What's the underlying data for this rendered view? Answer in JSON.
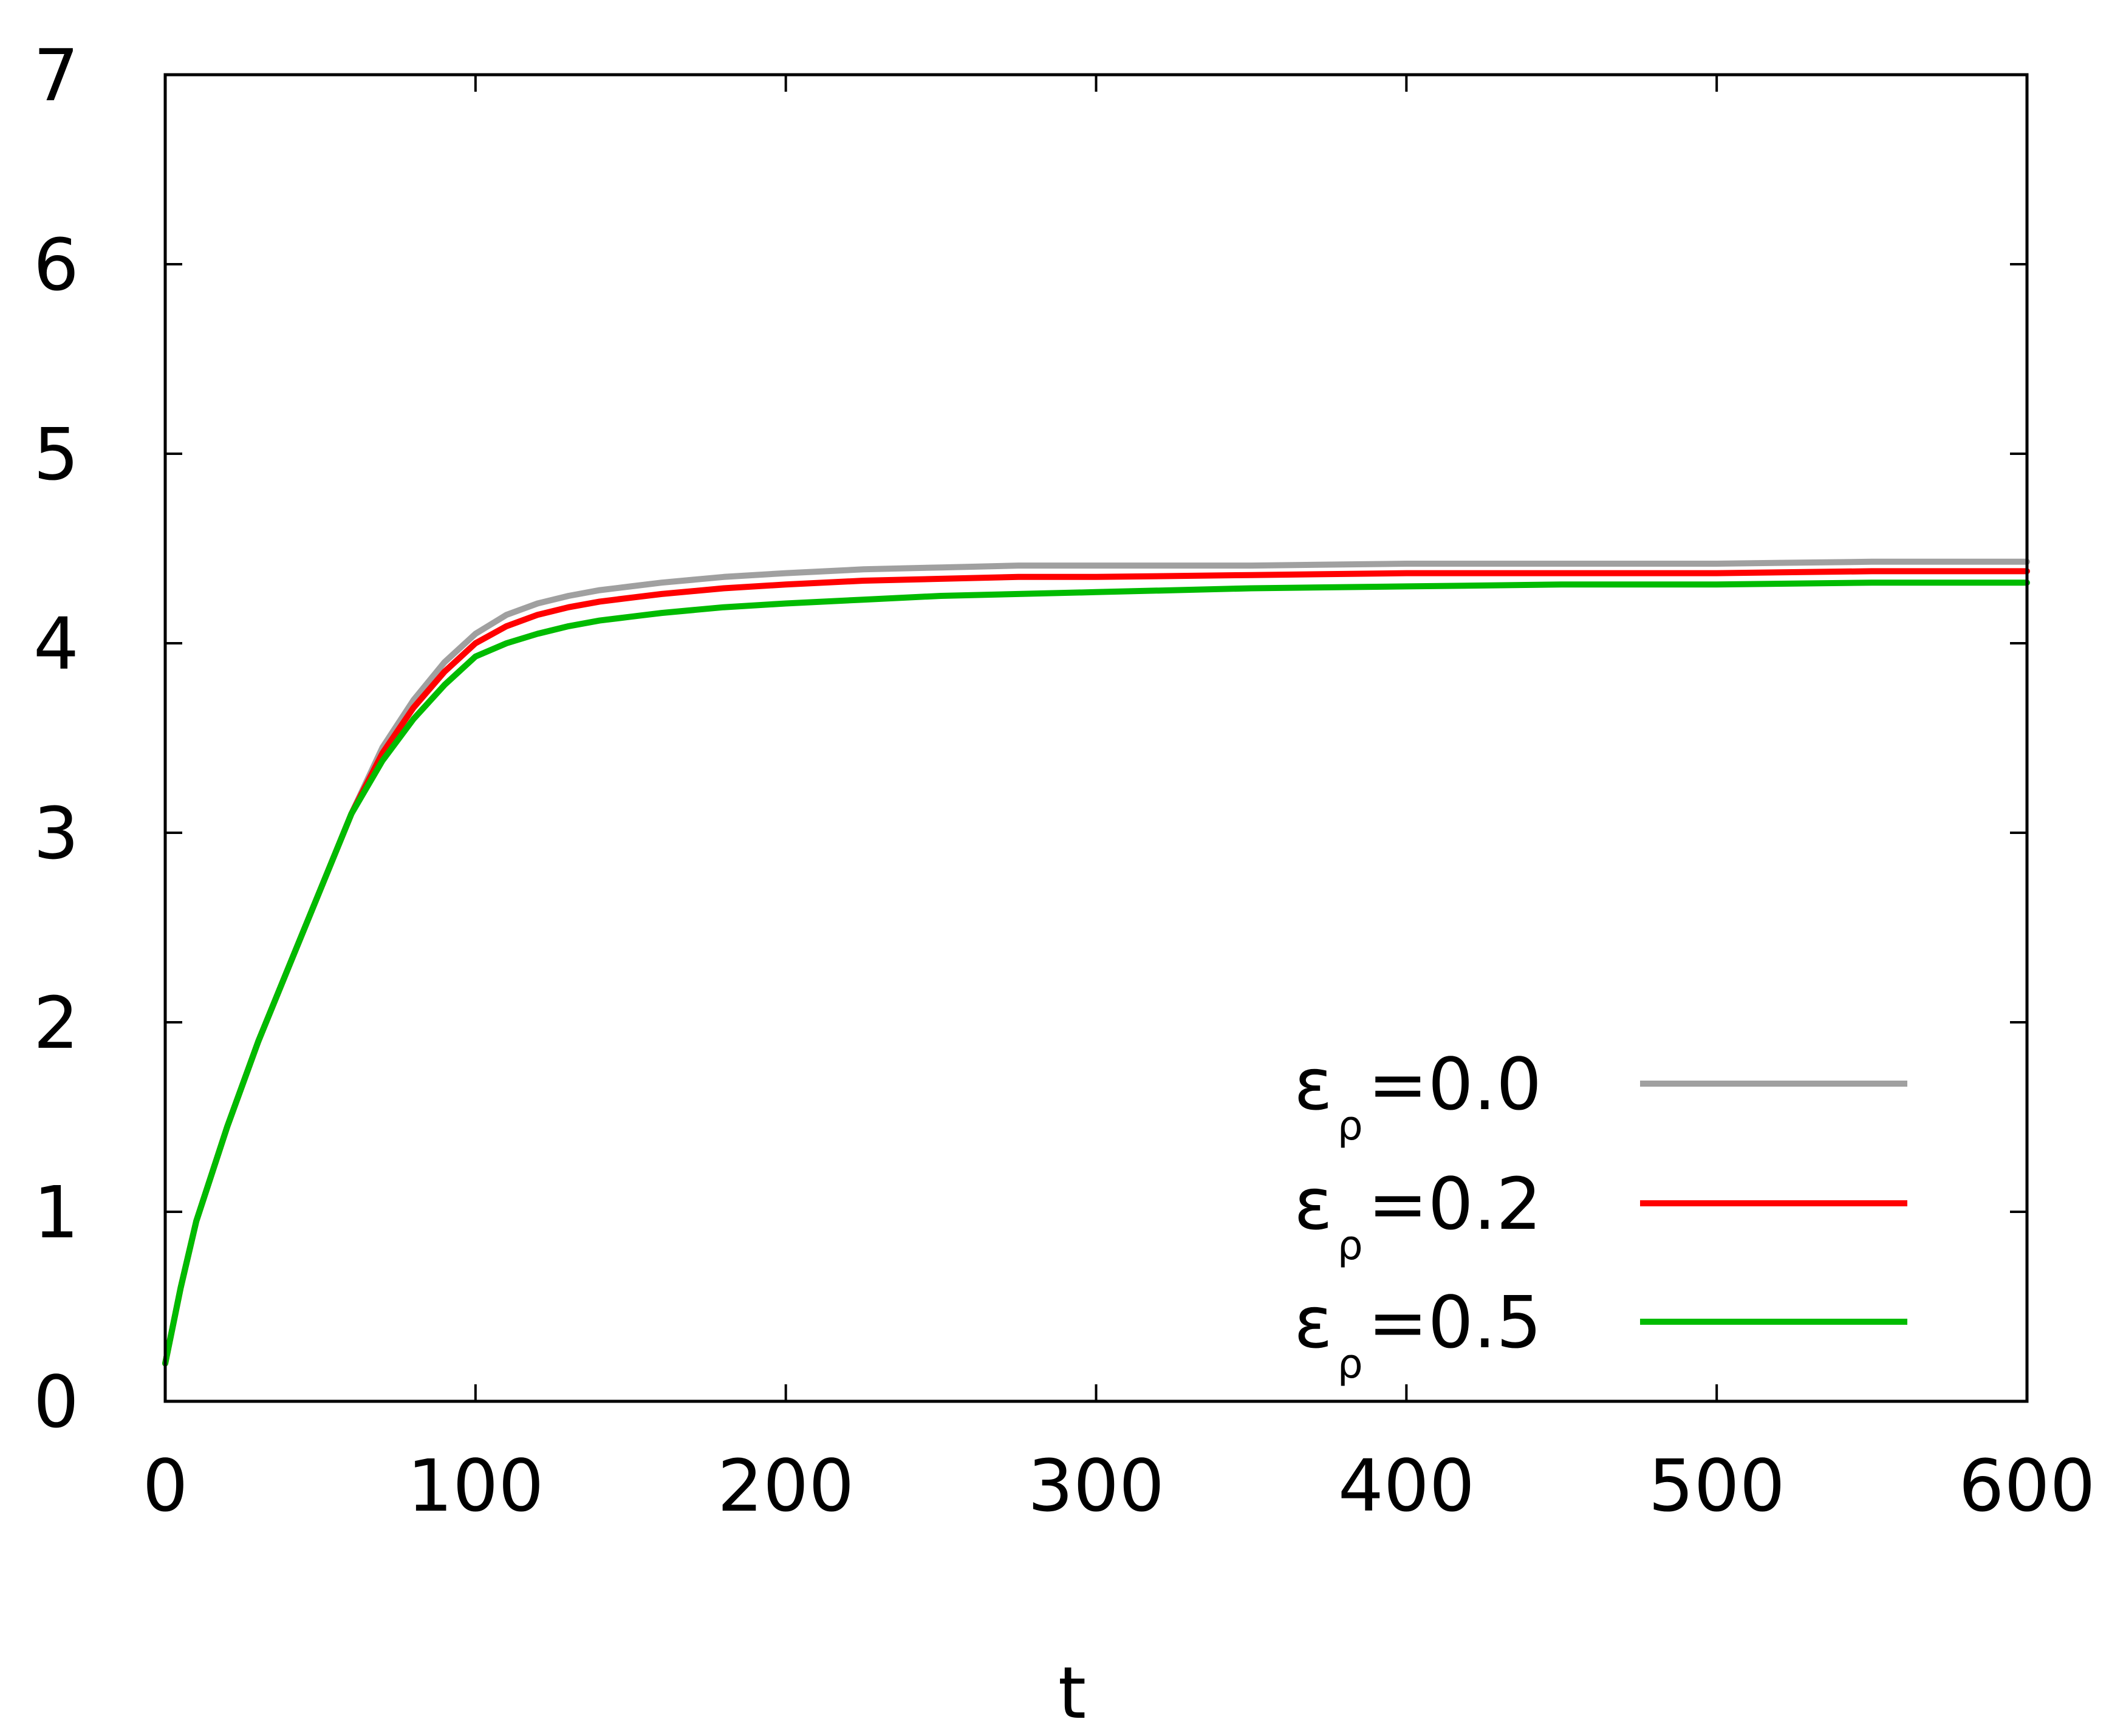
{
  "chart_data": {
    "type": "line",
    "title": "",
    "xlabel": "t",
    "ylabel": "",
    "xlim": [
      0,
      600
    ],
    "ylim": [
      0,
      7
    ],
    "xticks": [
      "0",
      "100",
      "200",
      "300",
      "400",
      "500",
      "600"
    ],
    "yticks": [
      "0",
      "1",
      "2",
      "3",
      "4",
      "5",
      "6",
      "7"
    ],
    "grid": false,
    "legend_position": "bottom-right",
    "series": [
      {
        "name": "ε_ρ=0.0",
        "legend_main": "ε",
        "legend_sub": "ρ",
        "legend_value": "=0.0",
        "color": "#a0a0a0",
        "x": [
          0,
          5,
          10,
          20,
          30,
          40,
          50,
          60,
          70,
          80,
          90,
          100,
          110,
          120,
          130,
          140,
          150,
          160,
          180,
          200,
          225,
          250,
          275,
          300,
          350,
          400,
          450,
          500,
          550,
          600
        ],
        "y": [
          0.2,
          0.6,
          0.95,
          1.45,
          1.9,
          2.3,
          2.7,
          3.1,
          3.45,
          3.7,
          3.9,
          4.05,
          4.15,
          4.21,
          4.25,
          4.28,
          4.3,
          4.32,
          4.35,
          4.37,
          4.39,
          4.4,
          4.41,
          4.41,
          4.41,
          4.42,
          4.42,
          4.42,
          4.43,
          4.43
        ]
      },
      {
        "name": "ε_ρ=0.2",
        "legend_main": "ε",
        "legend_sub": "ρ",
        "legend_value": "=0.2",
        "color": "#ff0000",
        "x": [
          0,
          5,
          10,
          20,
          30,
          40,
          50,
          60,
          70,
          80,
          90,
          100,
          110,
          120,
          130,
          140,
          150,
          160,
          180,
          200,
          225,
          250,
          275,
          300,
          350,
          400,
          450,
          500,
          550,
          600
        ],
        "y": [
          0.2,
          0.6,
          0.95,
          1.45,
          1.9,
          2.3,
          2.7,
          3.1,
          3.42,
          3.66,
          3.85,
          4.0,
          4.09,
          4.15,
          4.19,
          4.22,
          4.24,
          4.26,
          4.29,
          4.31,
          4.33,
          4.34,
          4.35,
          4.35,
          4.36,
          4.37,
          4.37,
          4.37,
          4.38,
          4.38
        ]
      },
      {
        "name": "ε_ρ=0.5",
        "legend_main": "ε",
        "legend_sub": "ρ",
        "legend_value": "=0.5",
        "color": "#00bb00",
        "x": [
          0,
          5,
          10,
          20,
          30,
          40,
          50,
          60,
          70,
          80,
          90,
          100,
          110,
          120,
          130,
          140,
          150,
          160,
          180,
          200,
          225,
          250,
          275,
          300,
          350,
          400,
          450,
          500,
          550,
          600
        ],
        "y": [
          0.2,
          0.6,
          0.95,
          1.45,
          1.9,
          2.3,
          2.7,
          3.1,
          3.38,
          3.6,
          3.78,
          3.93,
          4.0,
          4.05,
          4.09,
          4.12,
          4.14,
          4.16,
          4.19,
          4.21,
          4.23,
          4.25,
          4.26,
          4.27,
          4.29,
          4.3,
          4.31,
          4.31,
          4.32,
          4.32
        ]
      }
    ]
  }
}
